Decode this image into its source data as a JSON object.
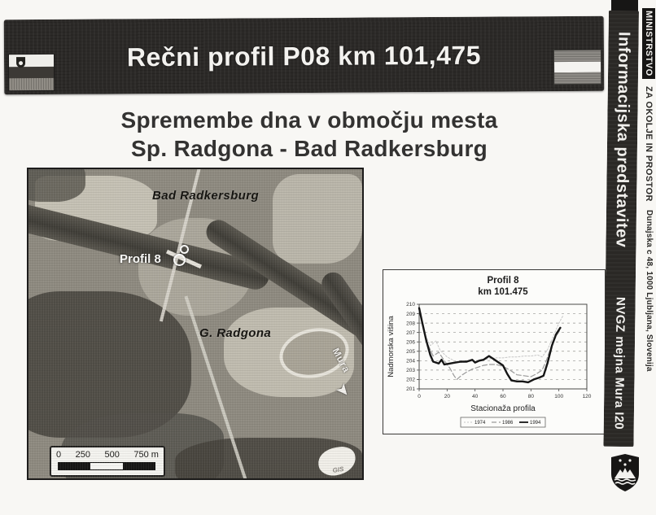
{
  "slide": {
    "title": "Rečni profil P08 km 101,475",
    "subtitle_line1": "Spremembe dna v območju mesta",
    "subtitle_line2": "Sp. Radgona - Bad Radkersburg"
  },
  "sidebar": {
    "ministry_name": "MINISTRSTVO",
    "ministry_dept": "ZA OKOLJE IN PROSTOR",
    "ministry_address": "Dunajska c 48, 1000 Ljubljana, Slovenija",
    "presentation_label": "Informacijska predstavitev",
    "project_label": "NVGZ mejna Mura I",
    "page_number": "20"
  },
  "map": {
    "labels": {
      "top_city": "Bad Radkersburg",
      "profile": "Profil 8",
      "bottom_city": "G. Radgona",
      "river": "Mura",
      "flow_arrow": "➤"
    },
    "scalebar": {
      "ticks": [
        "0",
        "250",
        "500",
        "750 m"
      ]
    },
    "logo": "GIS"
  },
  "chart_data": {
    "type": "line",
    "title_line1": "Profil 8",
    "title_line2": "km 101.475",
    "xlabel": "Stacionaža profila",
    "ylabel": "Nadmorska višina",
    "xlim": [
      0,
      120
    ],
    "ylim": [
      201,
      210
    ],
    "xticks": [
      0,
      20,
      40,
      60,
      80,
      100,
      120
    ],
    "yticks": [
      201,
      202,
      203,
      204,
      205,
      206,
      207,
      208,
      209,
      210
    ],
    "grid": "horizontal-dashed",
    "legend_position": "bottom",
    "series": [
      {
        "name": "1974",
        "color": "#c6c6c6",
        "dash": "2 2",
        "width": 1,
        "x": [
          0,
          4,
          8,
          12,
          15,
          20,
          25,
          30,
          35,
          40,
          45,
          50,
          55,
          60,
          65,
          70,
          75,
          80,
          85,
          88,
          92,
          96,
          100,
          103
        ],
        "y": [
          209.3,
          206.8,
          205.6,
          206.1,
          205.1,
          204.4,
          204.0,
          203.8,
          203.9,
          204.0,
          204.1,
          204.2,
          204.3,
          204.3,
          204.4,
          204.4,
          204.5,
          204.5,
          204.6,
          204.4,
          205.2,
          206.6,
          208.0,
          208.8
        ]
      },
      {
        "name": "1986",
        "color": "#9a9a9a",
        "dash": "6 3",
        "width": 1.2,
        "x": [
          0,
          3,
          6,
          10,
          14,
          18,
          22,
          25,
          27,
          30,
          34,
          38,
          42,
          46,
          50,
          55,
          60,
          65,
          70,
          75,
          80,
          84,
          88,
          91,
          94,
          98,
          101
        ],
        "y": [
          209.4,
          207.5,
          205.8,
          204.5,
          204.9,
          204.0,
          203.2,
          202.4,
          202.0,
          202.4,
          202.8,
          203.1,
          203.3,
          203.5,
          203.6,
          203.6,
          203.4,
          203.0,
          202.5,
          202.4,
          202.3,
          202.6,
          203.0,
          204.0,
          205.3,
          206.6,
          207.3
        ]
      },
      {
        "name": "1994",
        "color": "#161616",
        "dash": "",
        "width": 2.4,
        "x": [
          0,
          2,
          5,
          8,
          10,
          14,
          16,
          18,
          22,
          26,
          30,
          34,
          38,
          40,
          43,
          46,
          50,
          53,
          56,
          60,
          63,
          66,
          70,
          74,
          78,
          82,
          86,
          89,
          92,
          95,
          98,
          101
        ],
        "y": [
          209.6,
          208.2,
          206.2,
          204.6,
          203.9,
          203.7,
          204.1,
          203.6,
          203.7,
          203.8,
          203.9,
          203.9,
          204.1,
          203.8,
          204.0,
          204.1,
          204.5,
          204.2,
          203.9,
          203.5,
          202.6,
          201.9,
          201.8,
          201.8,
          201.7,
          202.0,
          202.2,
          202.4,
          203.8,
          205.6,
          206.8,
          207.5
        ]
      }
    ]
  }
}
